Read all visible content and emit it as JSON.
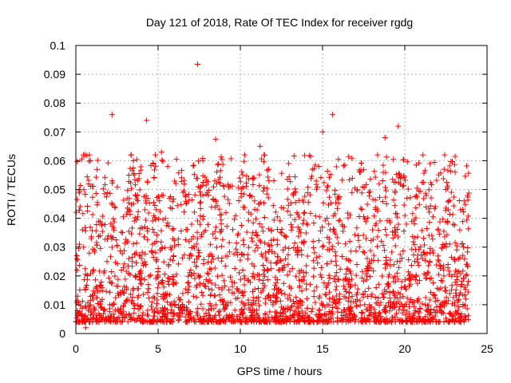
{
  "chart_data": {
    "type": "scatter",
    "title": "Day 121 of 2018, Rate Of TEC Index for receiver rgdg",
    "xlabel": "GPS time / hours",
    "ylabel": "ROTI / TECUs",
    "xlim": [
      0,
      25
    ],
    "ylim": [
      0,
      0.1
    ],
    "xticks": [
      "0",
      "5",
      "10",
      "15",
      "20",
      "25"
    ],
    "yticks": [
      "0",
      "0.01",
      "0.02",
      "0.03",
      "0.04",
      "0.05",
      "0.06",
      "0.07",
      "0.08",
      "0.09",
      "0.1"
    ],
    "grid": true,
    "marker": "+",
    "series": [
      {
        "name": "ROTI",
        "color": "#ff0000",
        "x_range": [
          0,
          23.9
        ],
        "bulk_range": [
          0.004,
          0.045
        ],
        "notable_points": [
          {
            "x": 7.4,
            "y": 0.0935
          },
          {
            "x": 2.2,
            "y": 0.076
          },
          {
            "x": 4.3,
            "y": 0.074
          },
          {
            "x": 15.6,
            "y": 0.076
          },
          {
            "x": 19.6,
            "y": 0.072
          },
          {
            "x": 15.0,
            "y": 0.07
          },
          {
            "x": 18.8,
            "y": 0.068
          },
          {
            "x": 8.5,
            "y": 0.0675
          },
          {
            "x": 11.2,
            "y": 0.065
          },
          {
            "x": 5.2,
            "y": 0.063
          },
          {
            "x": 0.4,
            "y": 0.036
          },
          {
            "x": 0.6,
            "y": 0.002
          }
        ]
      }
    ]
  }
}
